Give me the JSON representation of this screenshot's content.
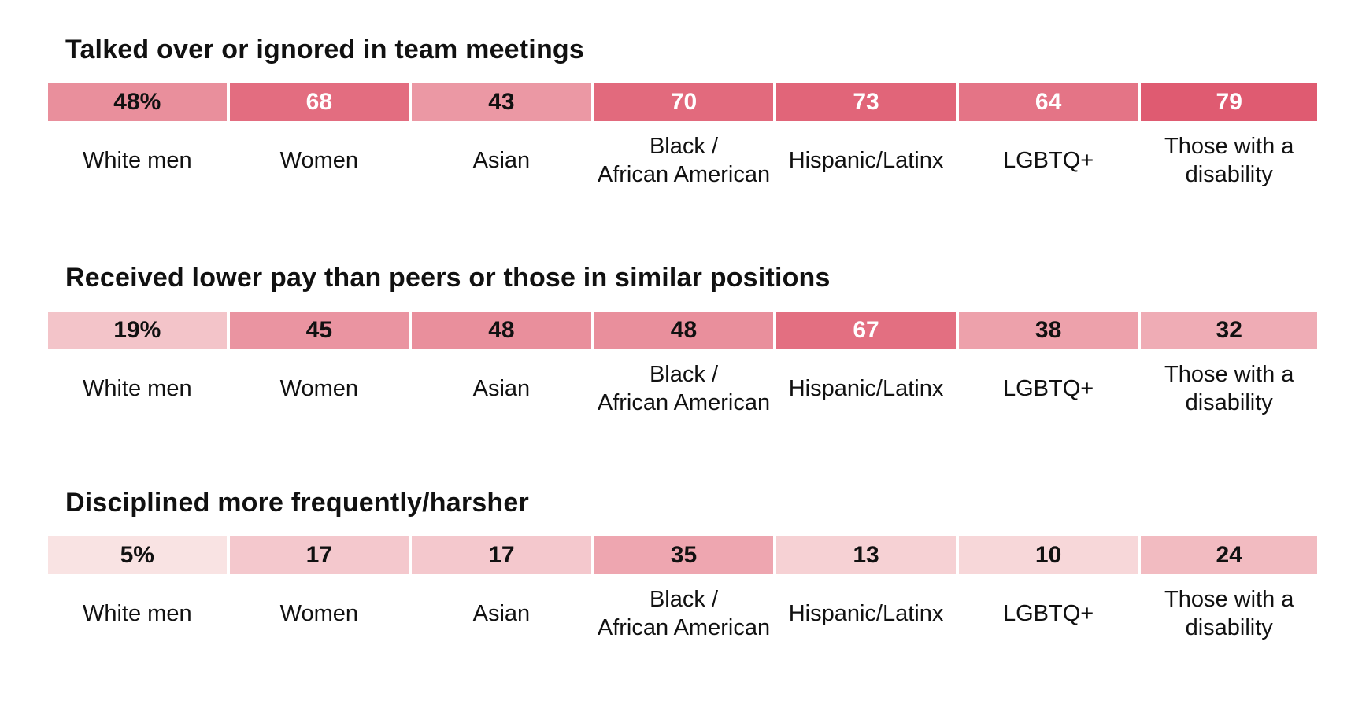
{
  "chart_data": [
    {
      "type": "heatmap",
      "title": "Talked over or ignored in team meetings",
      "categories": [
        "White men",
        "Women",
        "Asian",
        "Black /\nAfrican American",
        "Hispanic/Latinx",
        "LGBTQ+",
        "Those with a\ndisability"
      ],
      "values": [
        48,
        68,
        43,
        70,
        73,
        64,
        79
      ],
      "value_labels": [
        "48%",
        "68",
        "43",
        "70",
        "73",
        "64",
        "79"
      ],
      "scale": [
        0,
        100
      ]
    },
    {
      "type": "heatmap",
      "title": "Received lower pay than peers or those in similar positions",
      "categories": [
        "White men",
        "Women",
        "Asian",
        "Black /\nAfrican American",
        "Hispanic/Latinx",
        "LGBTQ+",
        "Those with a\ndisability"
      ],
      "values": [
        19,
        45,
        48,
        48,
        67,
        38,
        32
      ],
      "value_labels": [
        "19%",
        "45",
        "48",
        "48",
        "67",
        "38",
        "32"
      ],
      "scale": [
        0,
        100
      ]
    },
    {
      "type": "heatmap",
      "title": "Disciplined more frequently/harsher",
      "categories": [
        "White men",
        "Women",
        "Asian",
        "Black /\nAfrican American",
        "Hispanic/Latinx",
        "LGBTQ+",
        "Those with a\ndisability"
      ],
      "values": [
        5,
        17,
        17,
        35,
        13,
        10,
        24
      ],
      "value_labels": [
        "5%",
        "17",
        "17",
        "35",
        "13",
        "10",
        "24"
      ],
      "scale": [
        0,
        100
      ]
    }
  ],
  "colors": {
    "low": "#fcf1ef",
    "high": "#d93a55",
    "text_dark": "#111111",
    "text_light": "#ffffff"
  }
}
